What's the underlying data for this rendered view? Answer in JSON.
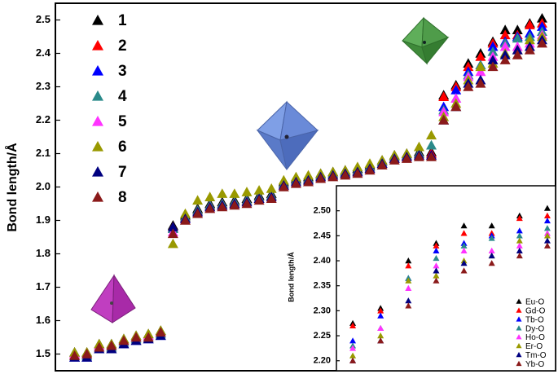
{
  "chart_data": [
    {
      "type": "scatter",
      "y_label": "Bond length/Å",
      "legend": "upper left",
      "categories": [
        null,
        null,
        null,
        null,
        null,
        null,
        null,
        null,
        null,
        null,
        null,
        null,
        null,
        null,
        null,
        null,
        null,
        null,
        null,
        null,
        null,
        null,
        null,
        null,
        null,
        null,
        null,
        null,
        null,
        null,
        null,
        null,
        null,
        null,
        null,
        null,
        null,
        null,
        null
      ],
      "ylim": [
        1.45,
        2.55
      ],
      "yticks": [
        1.5,
        1.6,
        1.7,
        1.8,
        1.9,
        {
          "value": 2,
          "label": "2.0"
        },
        2.1,
        2.2,
        2.3,
        2.4,
        2.5
      ],
      "series": [
        {
          "name": "1",
          "color": "#000000",
          "values": [
            1.505,
            1.505,
            1.53,
            1.53,
            1.545,
            1.555,
            1.56,
            1.57,
            1.885,
            1.915,
            1.935,
            1.95,
            1.955,
            1.96,
            1.965,
            1.975,
            1.98,
            2.015,
            2.025,
            2.03,
            2.04,
            2.045,
            2.05,
            2.055,
            2.065,
            2.08,
            2.095,
            2.1,
            2.105,
            2.105,
            2.275,
            2.305,
            2.37,
            2.4,
            2.435,
            2.47,
            2.47,
            2.49,
            2.505
          ]
        },
        {
          "name": "2",
          "color": "#ff0000",
          "values": [
            1.5,
            1.5,
            1.525,
            1.525,
            1.54,
            1.55,
            1.555,
            1.565,
            1.88,
            1.91,
            1.93,
            1.945,
            1.95,
            1.955,
            1.96,
            1.97,
            1.975,
            2.01,
            2.02,
            2.025,
            2.035,
            2.04,
            2.045,
            2.05,
            2.06,
            2.075,
            2.09,
            2.095,
            2.1,
            2.1,
            2.27,
            2.3,
            2.36,
            2.39,
            2.43,
            2.455,
            2.455,
            2.485,
            2.49
          ]
        },
        {
          "name": "3",
          "color": "#0000ff",
          "values": [
            1.49,
            1.49,
            1.515,
            1.515,
            1.53,
            1.54,
            1.545,
            1.555,
            1.875,
            1.905,
            1.925,
            1.94,
            1.945,
            1.95,
            1.955,
            1.965,
            1.97,
            2.005,
            2.015,
            2.02,
            2.03,
            2.035,
            2.04,
            2.045,
            2.055,
            2.07,
            2.085,
            2.09,
            2.095,
            2.095,
            2.24,
            2.29,
            2.345,
            2.365,
            2.42,
            2.435,
            2.45,
            2.46,
            2.48
          ]
        },
        {
          "name": "4",
          "color": "#2a8a8a",
          "values": [
            1.495,
            1.495,
            1.52,
            1.52,
            1.535,
            1.545,
            1.55,
            1.56,
            1.875,
            1.91,
            1.93,
            1.945,
            1.95,
            1.955,
            1.96,
            1.97,
            1.975,
            2.01,
            2.02,
            2.025,
            2.035,
            2.04,
            2.045,
            2.05,
            2.06,
            2.075,
            2.09,
            2.095,
            2.1,
            2.125,
            2.23,
            2.265,
            2.335,
            2.365,
            2.405,
            2.43,
            2.445,
            2.45,
            2.465
          ]
        },
        {
          "name": "5",
          "color": "#ff33ff",
          "values": [
            1.5,
            1.5,
            1.525,
            1.525,
            1.54,
            1.55,
            1.555,
            1.565,
            1.865,
            1.905,
            1.925,
            1.94,
            1.945,
            1.95,
            1.955,
            1.965,
            1.97,
            2.005,
            2.015,
            2.02,
            2.03,
            2.035,
            2.04,
            2.045,
            2.055,
            2.07,
            2.085,
            2.09,
            2.095,
            2.095,
            2.225,
            2.265,
            2.33,
            2.345,
            2.39,
            2.42,
            2.42,
            2.43,
            2.455
          ]
        },
        {
          "name": "6",
          "color": "#999900",
          "values": [
            1.505,
            1.505,
            1.53,
            1.53,
            1.545,
            1.555,
            1.56,
            1.57,
            1.83,
            1.92,
            1.96,
            1.97,
            1.98,
            1.98,
            1.985,
            1.99,
            1.995,
            2.02,
            2.03,
            2.035,
            2.04,
            2.045,
            2.05,
            2.06,
            2.07,
            2.08,
            2.095,
            2.1,
            2.12,
            2.155,
            2.21,
            2.25,
            2.32,
            2.36,
            2.37,
            2.4,
            2.41,
            2.44,
            2.45
          ]
        },
        {
          "name": "7",
          "color": "#000080",
          "values": [
            1.49,
            1.49,
            1.515,
            1.515,
            1.53,
            1.54,
            1.545,
            1.555,
            1.88,
            1.905,
            1.925,
            1.94,
            1.945,
            1.95,
            1.955,
            1.965,
            1.97,
            2.005,
            2.015,
            2.02,
            2.03,
            2.035,
            2.04,
            2.045,
            2.055,
            2.07,
            2.085,
            2.09,
            2.095,
            2.095,
            2.2,
            2.24,
            2.31,
            2.32,
            2.38,
            2.395,
            2.41,
            2.42,
            2.44
          ]
        },
        {
          "name": "8",
          "color": "#8b1a1a",
          "values": [
            1.495,
            1.5,
            1.52,
            1.525,
            1.54,
            1.55,
            1.55,
            1.565,
            1.86,
            1.9,
            1.92,
            1.935,
            1.94,
            1.945,
            1.95,
            1.96,
            1.965,
            2.0,
            2.01,
            2.015,
            2.025,
            2.03,
            2.035,
            2.04,
            2.05,
            2.065,
            2.08,
            2.085,
            2.09,
            2.09,
            2.2,
            2.24,
            2.3,
            2.31,
            2.36,
            2.38,
            2.395,
            2.41,
            2.43
          ]
        }
      ]
    },
    {
      "type": "scatter",
      "y_label": "Bond length/Å",
      "legend": "lower right",
      "categories": [
        null,
        null,
        null,
        null,
        null,
        null,
        null,
        null
      ],
      "ylim": [
        2.18,
        2.55
      ],
      "yticks": [
        {
          "value": 2.2,
          "label": "2.20"
        },
        {
          "value": 2.25,
          "label": "2.25"
        },
        {
          "value": 2.3,
          "label": "2.30"
        },
        {
          "value": 2.35,
          "label": "2.35"
        },
        {
          "value": 2.4,
          "label": "2.40"
        },
        {
          "value": 2.45,
          "label": "2.45"
        },
        {
          "value": 2.5,
          "label": "2.50"
        }
      ],
      "series": [
        {
          "name": "Eu-O",
          "color": "#000000",
          "values": [
            2.275,
            2.305,
            2.4,
            2.435,
            2.47,
            2.47,
            2.49,
            2.505
          ]
        },
        {
          "name": "Gd-O",
          "color": "#ff0000",
          "values": [
            2.27,
            2.3,
            2.39,
            2.43,
            2.455,
            2.455,
            2.485,
            2.49
          ]
        },
        {
          "name": "Tb-O",
          "color": "#0000ff",
          "values": [
            2.24,
            2.29,
            2.365,
            2.42,
            2.435,
            2.45,
            2.46,
            2.48
          ]
        },
        {
          "name": "Dy-O",
          "color": "#2a8a8a",
          "values": [
            2.23,
            2.265,
            2.365,
            2.405,
            2.43,
            2.445,
            2.45,
            2.465
          ]
        },
        {
          "name": "Ho-O",
          "color": "#ff33ff",
          "values": [
            2.225,
            2.265,
            2.345,
            2.39,
            2.42,
            2.42,
            2.43,
            2.455
          ]
        },
        {
          "name": "Er-O",
          "color": "#999900",
          "values": [
            2.21,
            2.25,
            2.36,
            2.37,
            2.4,
            2.41,
            2.44,
            2.45
          ]
        },
        {
          "name": "Tm-O",
          "color": "#000080",
          "values": [
            2.2,
            2.24,
            2.32,
            2.38,
            2.395,
            2.41,
            2.42,
            2.44
          ]
        },
        {
          "name": "Yb-O",
          "color": "#8b1a1a",
          "values": [
            2.2,
            2.24,
            2.31,
            2.36,
            2.38,
            2.395,
            2.41,
            2.43
          ]
        }
      ]
    }
  ]
}
